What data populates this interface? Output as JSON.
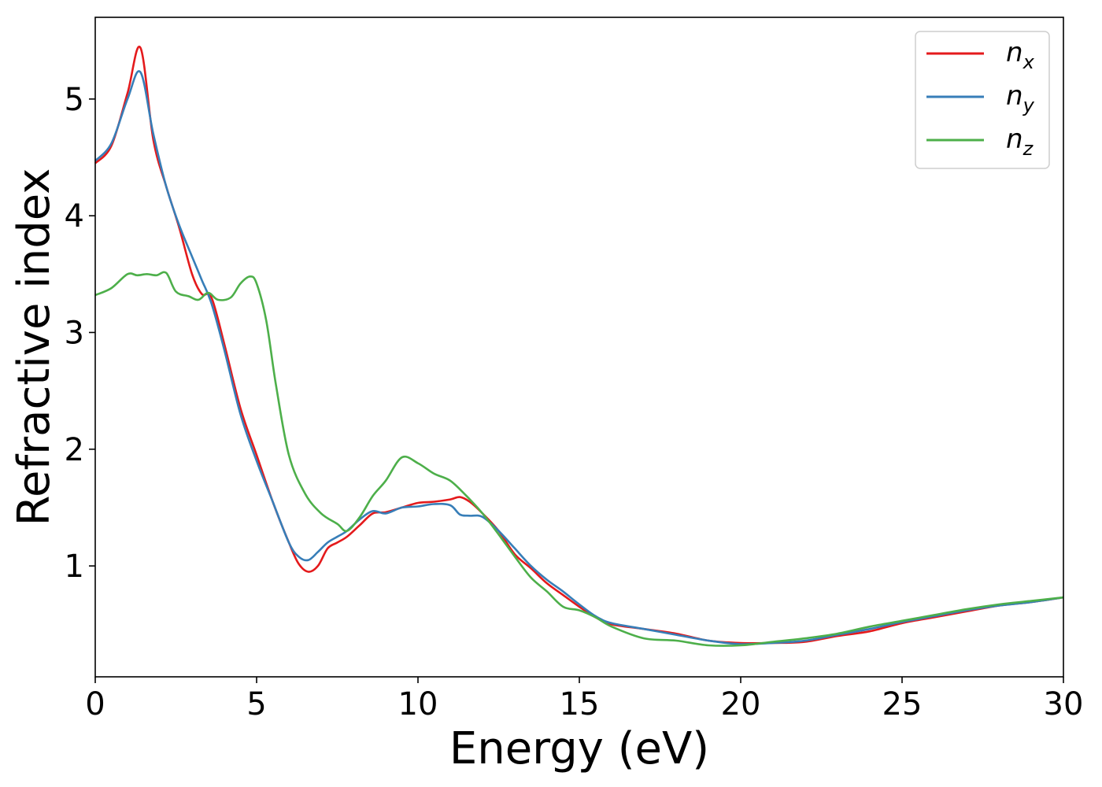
{
  "chart_data": {
    "type": "line",
    "title": "",
    "xlabel": "Energy (eV)",
    "ylabel": "Refractive index",
    "xlim": [
      0,
      30
    ],
    "ylim": [
      0.05,
      5.7
    ],
    "xticks": [
      "0",
      "5",
      "10",
      "15",
      "20",
      "25",
      "30"
    ],
    "yticks": [
      "1",
      "2",
      "3",
      "4",
      "5"
    ],
    "grid": false,
    "legend_position": "top-right",
    "series": [
      {
        "name": "n",
        "subscript": "x",
        "color": "#e41a1c",
        "x": [
          0,
          0.5,
          1.0,
          1.4,
          1.8,
          2.2,
          2.6,
          3.0,
          3.3,
          3.6,
          4.0,
          4.5,
          5.0,
          5.5,
          6.0,
          6.3,
          6.6,
          6.9,
          7.2,
          7.5,
          7.8,
          8.2,
          8.6,
          9.0,
          9.5,
          10.0,
          10.5,
          11.0,
          11.3,
          11.6,
          12.0,
          12.5,
          13.0,
          13.5,
          14.0,
          14.5,
          15.0,
          15.5,
          16.0,
          17.0,
          18.0,
          19.0,
          20.0,
          21.0,
          22.0,
          23.0,
          24.0,
          25.0,
          26.0,
          27.0,
          28.0,
          29.0,
          30.0
        ],
        "y": [
          4.45,
          4.6,
          5.05,
          5.44,
          4.65,
          4.25,
          3.9,
          3.5,
          3.33,
          3.3,
          2.9,
          2.35,
          1.95,
          1.55,
          1.2,
          1.02,
          0.95,
          1.0,
          1.15,
          1.2,
          1.25,
          1.35,
          1.45,
          1.46,
          1.5,
          1.54,
          1.55,
          1.57,
          1.59,
          1.55,
          1.45,
          1.3,
          1.1,
          0.98,
          0.85,
          0.75,
          0.65,
          0.56,
          0.5,
          0.46,
          0.42,
          0.36,
          0.34,
          0.34,
          0.35,
          0.4,
          0.44,
          0.51,
          0.56,
          0.61,
          0.66,
          0.69,
          0.73
        ]
      },
      {
        "name": "n",
        "subscript": "y",
        "color": "#377eb8",
        "x": [
          0,
          0.5,
          1.0,
          1.4,
          1.8,
          2.2,
          2.6,
          3.0,
          3.3,
          3.6,
          4.0,
          4.5,
          5.0,
          5.5,
          6.0,
          6.3,
          6.6,
          6.9,
          7.2,
          7.5,
          7.8,
          8.2,
          8.6,
          9.0,
          9.5,
          10.0,
          10.5,
          11.0,
          11.3,
          11.6,
          12.0,
          12.5,
          13.0,
          13.5,
          14.0,
          14.5,
          15.0,
          15.5,
          16.0,
          17.0,
          18.0,
          19.0,
          20.0,
          21.0,
          22.0,
          23.0,
          24.0,
          25.0,
          26.0,
          27.0,
          28.0,
          29.0,
          30.0
        ],
        "y": [
          4.47,
          4.62,
          5.0,
          5.23,
          4.7,
          4.25,
          3.92,
          3.65,
          3.45,
          3.25,
          2.85,
          2.3,
          1.9,
          1.55,
          1.2,
          1.08,
          1.05,
          1.12,
          1.2,
          1.25,
          1.3,
          1.4,
          1.47,
          1.45,
          1.5,
          1.51,
          1.53,
          1.52,
          1.44,
          1.43,
          1.42,
          1.3,
          1.15,
          1.0,
          0.88,
          0.78,
          0.67,
          0.57,
          0.51,
          0.46,
          0.41,
          0.36,
          0.33,
          0.34,
          0.36,
          0.41,
          0.46,
          0.52,
          0.57,
          0.62,
          0.66,
          0.69,
          0.73
        ]
      },
      {
        "name": "n",
        "subscript": "z",
        "color": "#4daf4a",
        "x": [
          0,
          0.5,
          1.0,
          1.3,
          1.6,
          1.9,
          2.2,
          2.5,
          2.9,
          3.2,
          3.5,
          3.8,
          4.2,
          4.5,
          4.8,
          5.0,
          5.3,
          5.6,
          6.0,
          6.5,
          7.0,
          7.5,
          7.8,
          8.2,
          8.6,
          9.0,
          9.5,
          10.0,
          10.5,
          11.0,
          11.5,
          12.0,
          12.5,
          13.0,
          13.5,
          14.0,
          14.5,
          15.0,
          15.5,
          16.0,
          17.0,
          18.0,
          19.0,
          20.0,
          21.0,
          22.0,
          23.0,
          24.0,
          25.0,
          26.0,
          27.0,
          28.0,
          29.0,
          30.0
        ],
        "y": [
          3.32,
          3.38,
          3.5,
          3.49,
          3.5,
          3.49,
          3.51,
          3.35,
          3.31,
          3.28,
          3.34,
          3.28,
          3.3,
          3.42,
          3.48,
          3.42,
          3.1,
          2.55,
          1.95,
          1.62,
          1.45,
          1.36,
          1.3,
          1.42,
          1.6,
          1.73,
          1.93,
          1.88,
          1.79,
          1.73,
          1.6,
          1.45,
          1.27,
          1.08,
          0.9,
          0.78,
          0.65,
          0.62,
          0.56,
          0.48,
          0.38,
          0.36,
          0.32,
          0.32,
          0.35,
          0.38,
          0.42,
          0.48,
          0.53,
          0.58,
          0.63,
          0.67,
          0.7,
          0.73
        ]
      }
    ]
  }
}
